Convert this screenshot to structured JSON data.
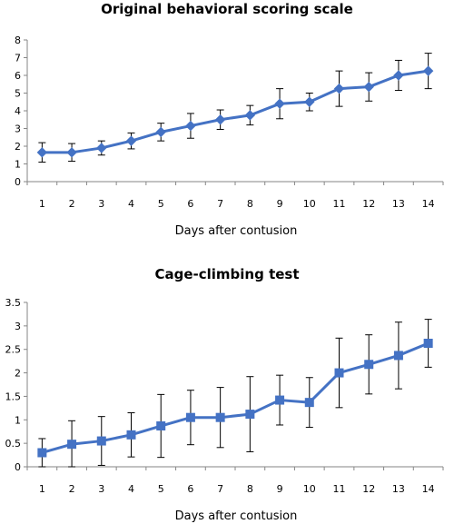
{
  "chart_data": [
    {
      "type": "line",
      "title": "Original behavioral scoring scale",
      "xlabel": "Days after contusion",
      "ylabel": "",
      "ylim": [
        0,
        8
      ],
      "y_ticks": [
        "0",
        "1",
        "2",
        "3",
        "4",
        "5",
        "6",
        "7",
        "8"
      ],
      "categories": [
        "1",
        "2",
        "3",
        "4",
        "5",
        "6",
        "7",
        "8",
        "9",
        "10",
        "11",
        "12",
        "13",
        "14"
      ],
      "marker": "diamond",
      "color": "#4472C4",
      "grid": false,
      "series": [
        {
          "values": [
            1.65,
            1.65,
            1.9,
            2.3,
            2.8,
            3.15,
            3.5,
            3.75,
            4.4,
            4.5,
            5.25,
            5.35,
            6.0,
            6.25
          ],
          "error": [
            0.55,
            0.5,
            0.4,
            0.45,
            0.5,
            0.7,
            0.55,
            0.55,
            0.85,
            0.5,
            1.0,
            0.8,
            0.85,
            1.0
          ]
        }
      ]
    },
    {
      "type": "line",
      "title": "Cage-climbing test",
      "xlabel": "Days after contusion",
      "ylabel": "",
      "ylim": [
        0,
        3.5
      ],
      "y_ticks": [
        "0",
        "0.5",
        "1",
        "1.5",
        "2",
        "2.5",
        "3",
        "3.5"
      ],
      "categories": [
        "1",
        "2",
        "3",
        "4",
        "5",
        "6",
        "7",
        "8",
        "9",
        "10",
        "11",
        "12",
        "13",
        "14"
      ],
      "marker": "square",
      "color": "#4472C4",
      "grid": false,
      "series": [
        {
          "values": [
            0.3,
            0.48,
            0.55,
            0.68,
            0.87,
            1.05,
            1.05,
            1.12,
            1.42,
            1.37,
            2.0,
            2.18,
            2.37,
            2.63
          ],
          "error": [
            0.3,
            0.5,
            0.52,
            0.47,
            0.67,
            0.58,
            0.64,
            0.8,
            0.53,
            0.53,
            0.74,
            0.63,
            0.71,
            0.51
          ]
        }
      ]
    }
  ]
}
